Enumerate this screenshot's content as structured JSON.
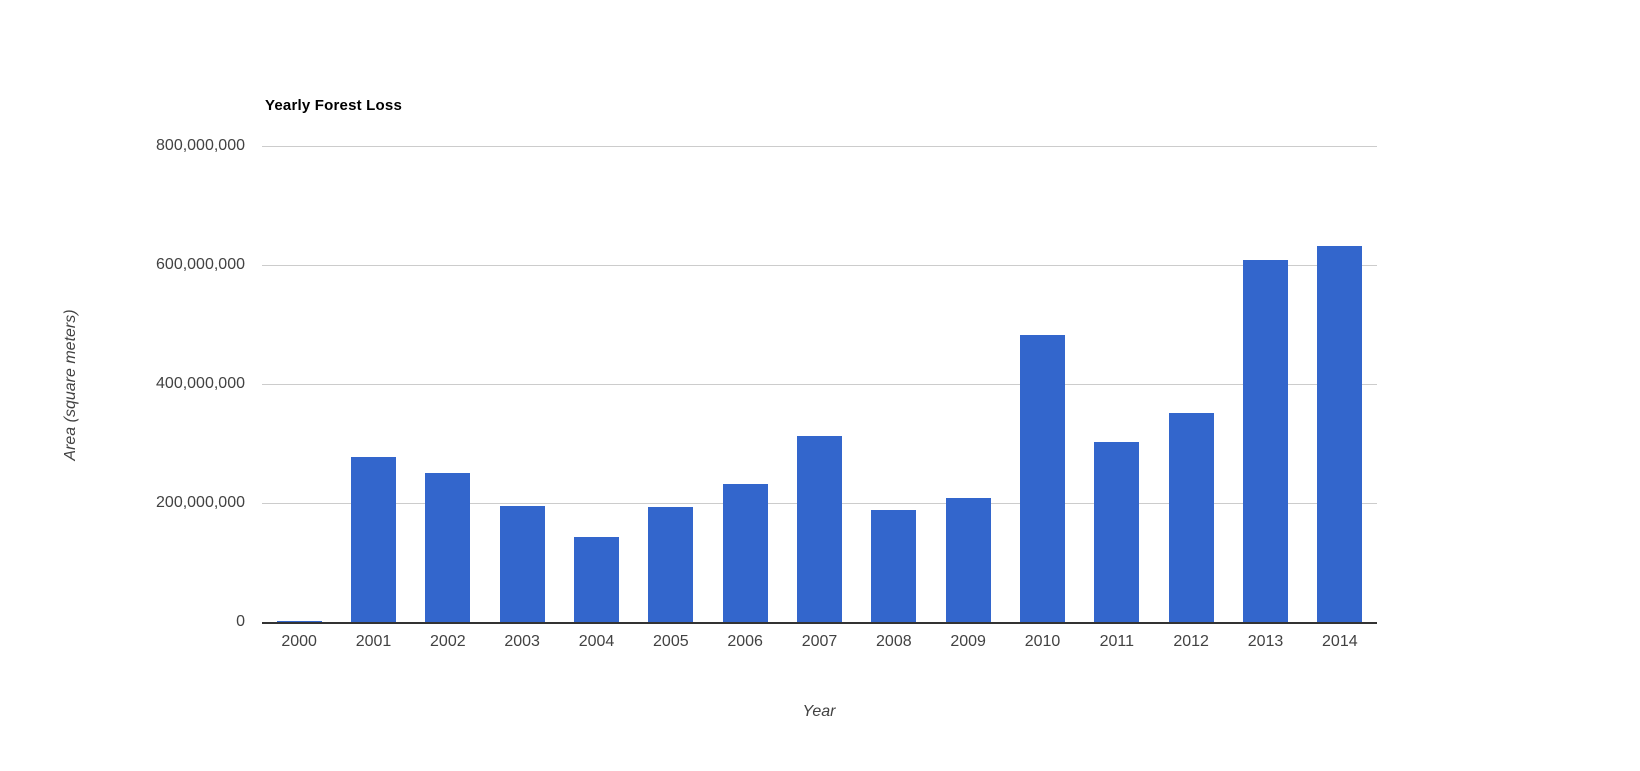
{
  "chart_data": {
    "type": "bar",
    "title": "Yearly Forest Loss",
    "xlabel": "Year",
    "ylabel": "Area (square meters)",
    "categories": [
      "2000",
      "2001",
      "2002",
      "2003",
      "2004",
      "2005",
      "2006",
      "2007",
      "2008",
      "2009",
      "2010",
      "2011",
      "2012",
      "2013",
      "2014"
    ],
    "values": [
      2000000,
      278000000,
      250000000,
      195000000,
      143000000,
      194000000,
      232000000,
      312000000,
      188000000,
      208000000,
      483000000,
      303000000,
      351000000,
      608000000,
      632000000
    ],
    "ylim": [
      0,
      800000000
    ],
    "ytick_labels": [
      "0",
      "200,000,000",
      "400,000,000",
      "600,000,000",
      "800,000,000"
    ],
    "grid": true,
    "legend": "none",
    "bar_color": "#3366cc",
    "gridline_color": "#cccccc",
    "baseline_color": "#333333",
    "tick_label_color": "#424242",
    "title_color": "#000000",
    "background_color": "#ffffff"
  }
}
